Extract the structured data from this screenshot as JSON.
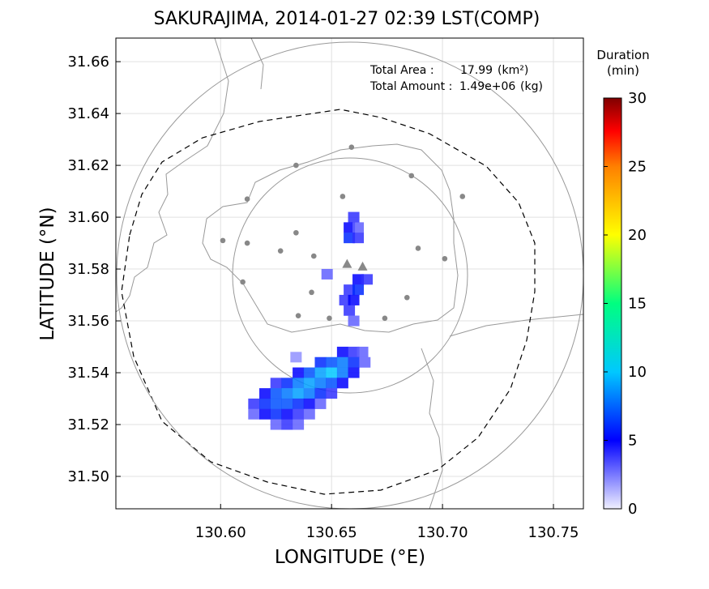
{
  "chart_data": {
    "type": "map",
    "title": "SAKURAJIMA, 2014-01-27 02:39 LST(COMP)",
    "x_label": "LONGITUDE (°E)",
    "y_label": "LATITUDE (°N)",
    "xlim": [
      130.5528,
      130.7635
    ],
    "ylim": [
      31.4875,
      31.6691
    ],
    "xticks": [
      {
        "value": 130.6,
        "label": "130.60"
      },
      130.65,
      {
        "value": 130.7,
        "label": "130.70"
      },
      130.75
    ],
    "yticks": [
      {
        "value": 31.5,
        "label": "31.50"
      },
      31.52,
      31.54,
      31.56,
      31.58,
      {
        "value": 31.6,
        "label": "31.60"
      },
      31.62,
      31.64,
      31.66
    ],
    "grid": true,
    "annotations": {
      "total_area": {
        "label": "Total Area   :",
        "value": 17.99,
        "unit": "(km²)"
      },
      "total_amount": {
        "label": "Total Amount :",
        "value": {
          "value": 1490000,
          "label": "1.49e+06"
        },
        "unit": "(kg)"
      }
    },
    "colorbar": {
      "title": [
        "Duration",
        "(min)"
      ],
      "lim": [
        0,
        30
      ],
      "ticks": [
        0,
        5,
        10,
        15,
        20,
        25,
        30
      ]
    },
    "plume": {
      "lon": [
        130.655,
        130.66,
        130.664,
        130.645,
        130.65,
        130.655,
        130.66,
        130.665,
        130.635,
        130.64,
        130.645,
        130.65,
        130.655,
        130.66,
        130.625,
        130.63,
        130.635,
        130.64,
        130.645,
        130.65,
        130.655,
        130.62,
        130.625,
        130.63,
        130.635,
        130.64,
        130.645,
        130.65,
        130.615,
        130.62,
        130.625,
        130.63,
        130.635,
        130.64,
        130.645,
        130.615,
        130.62,
        130.625,
        130.63,
        130.635,
        130.64,
        130.625,
        130.63,
        130.635,
        130.66,
        130.658,
        130.662,
        130.658,
        130.662,
        130.662,
        130.666,
        130.658,
        130.662,
        130.656,
        130.66,
        130.658,
        130.66,
        130.648,
        130.634
      ],
      "lat": [
        31.548,
        31.548,
        31.548,
        31.544,
        31.544,
        31.544,
        31.544,
        31.544,
        31.54,
        31.54,
        31.54,
        31.54,
        31.54,
        31.54,
        31.536,
        31.536,
        31.536,
        31.536,
        31.536,
        31.536,
        31.536,
        31.532,
        31.532,
        31.532,
        31.532,
        31.532,
        31.532,
        31.532,
        31.528,
        31.528,
        31.528,
        31.528,
        31.528,
        31.528,
        31.528,
        31.524,
        31.524,
        31.524,
        31.524,
        31.524,
        31.524,
        31.52,
        31.52,
        31.52,
        31.6,
        31.596,
        31.596,
        31.592,
        31.592,
        31.576,
        31.576,
        31.572,
        31.572,
        31.568,
        31.568,
        31.564,
        31.56,
        31.578,
        31.546
      ],
      "duration": [
        5,
        4,
        3,
        6,
        7,
        8,
        6,
        3,
        5,
        7,
        9,
        10,
        8,
        5,
        4,
        6,
        8,
        9,
        8,
        7,
        5,
        5,
        7,
        8,
        9,
        8,
        6,
        4,
        4,
        6,
        7,
        7,
        6,
        5,
        3,
        3,
        5,
        6,
        5,
        4,
        3,
        3,
        4,
        3,
        4,
        5,
        3,
        6,
        4,
        5,
        4,
        4,
        6,
        4,
        5,
        4,
        3,
        3,
        2
      ]
    },
    "stations": {
      "lon": [
        130.659,
        130.634,
        130.686,
        130.709,
        130.612,
        130.655,
        130.601,
        130.612,
        130.627,
        130.642,
        130.634,
        130.689,
        130.701,
        130.61,
        130.641,
        130.684,
        130.635,
        130.649,
        130.674
      ],
      "lat": [
        31.627,
        31.62,
        31.616,
        31.608,
        31.607,
        31.608,
        31.591,
        31.59,
        31.587,
        31.585,
        31.594,
        31.588,
        31.584,
        31.575,
        31.571,
        31.569,
        31.562,
        31.561,
        31.561
      ]
    },
    "vents": {
      "lon": [
        130.657,
        130.664
      ],
      "lat": [
        31.582,
        31.581
      ]
    }
  }
}
